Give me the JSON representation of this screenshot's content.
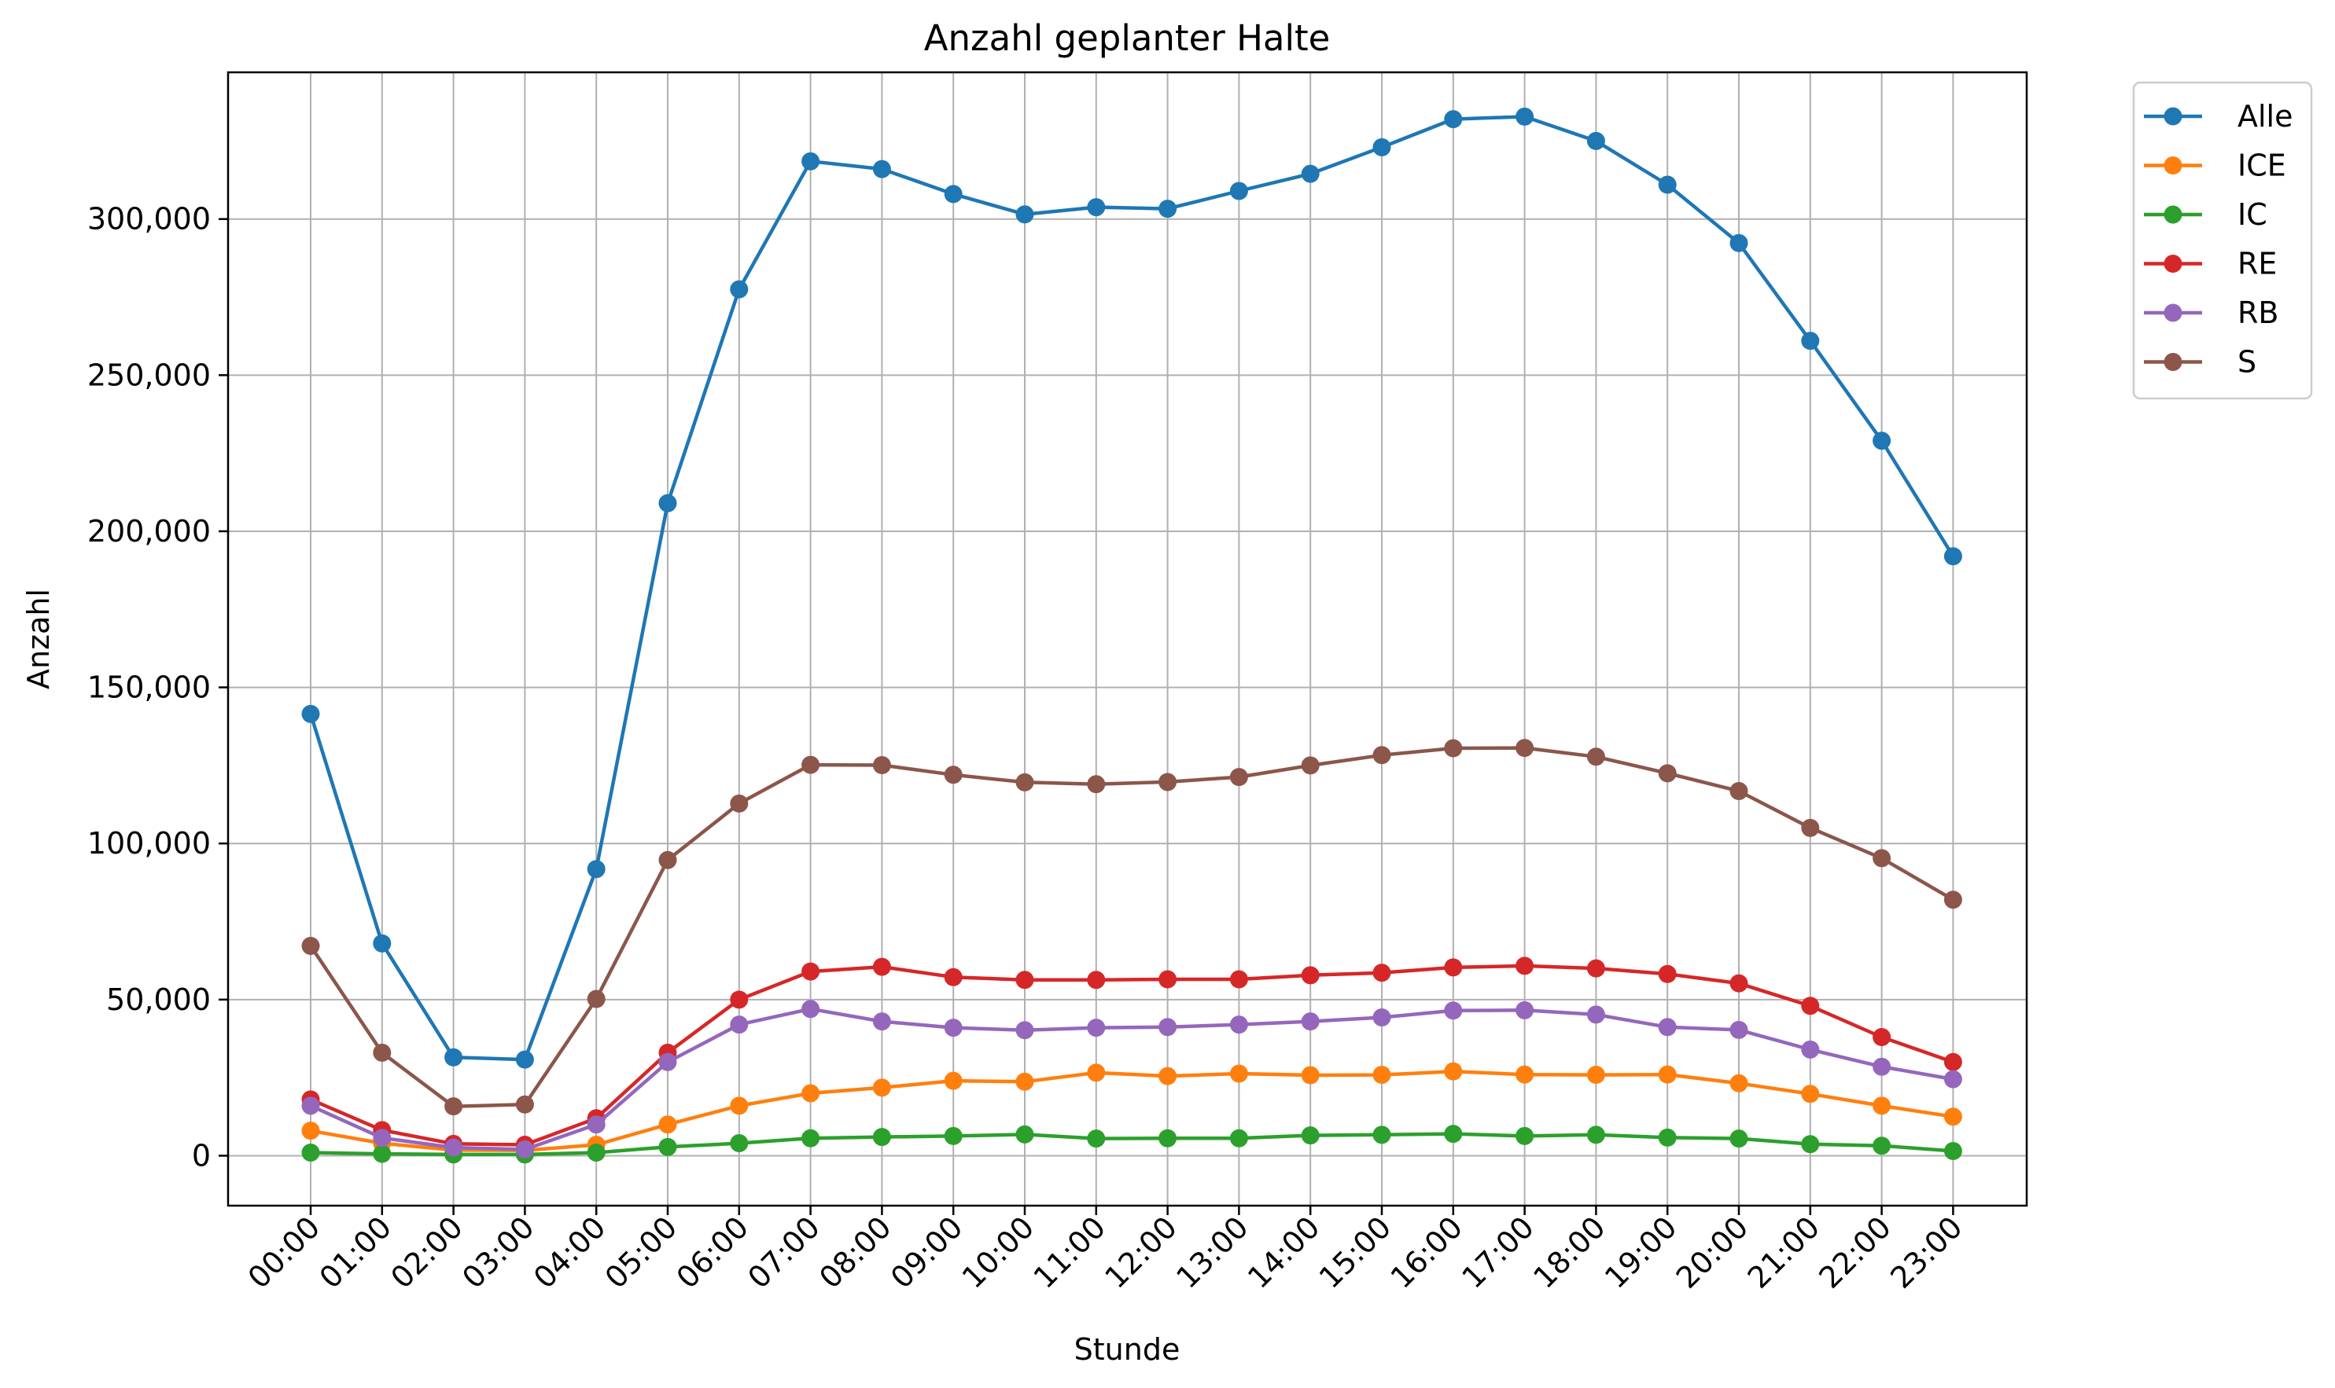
{
  "chart_data": {
    "type": "line",
    "title": "Anzahl geplanter Halte",
    "xlabel": "Stunde",
    "ylabel": "Anzahl",
    "categories": [
      "00:00",
      "01:00",
      "02:00",
      "03:00",
      "04:00",
      "05:00",
      "06:00",
      "07:00",
      "08:00",
      "09:00",
      "10:00",
      "11:00",
      "12:00",
      "13:00",
      "14:00",
      "15:00",
      "16:00",
      "17:00",
      "18:00",
      "19:00",
      "20:00",
      "21:00",
      "22:00",
      "23:00"
    ],
    "ylim": [
      -16000,
      347000
    ],
    "yticks": [
      0,
      50000,
      100000,
      150000,
      200000,
      250000,
      300000
    ],
    "ytick_labels": [
      "0",
      "50,000",
      "100,000",
      "150,000",
      "200,000",
      "250,000",
      "300,000"
    ],
    "grid": true,
    "legend_position": "outside-top-right",
    "series": [
      {
        "name": "Alle",
        "color": "#1f77b4",
        "values": [
          141500,
          68000,
          31500,
          30800,
          91800,
          209000,
          277500,
          318500,
          316000,
          308000,
          301500,
          303800,
          303300,
          309000,
          314500,
          323000,
          332000,
          332800,
          325000,
          311000,
          292300,
          261000,
          229000,
          192000
        ]
      },
      {
        "name": "ICE",
        "color": "#ff7f0e",
        "values": [
          8000,
          4000,
          1800,
          1700,
          3500,
          10000,
          16000,
          20000,
          21800,
          24000,
          23700,
          26600,
          25500,
          26300,
          25800,
          25900,
          27000,
          26000,
          25900,
          26000,
          23200,
          19800,
          16000,
          12500
        ]
      },
      {
        "name": "IC",
        "color": "#2ca02c",
        "values": [
          1000,
          600,
          400,
          400,
          1000,
          2800,
          4000,
          5600,
          6000,
          6300,
          6800,
          5500,
          5600,
          5600,
          6500,
          6700,
          7000,
          6300,
          6700,
          5800,
          5500,
          3700,
          3200,
          1500
        ]
      },
      {
        "name": "RE",
        "color": "#d62728",
        "values": [
          18000,
          8200,
          3800,
          3500,
          12000,
          33000,
          50000,
          59000,
          60500,
          57200,
          56300,
          56300,
          56500,
          56500,
          57800,
          58600,
          60300,
          60800,
          60000,
          58200,
          55200,
          48000,
          38000,
          30000
        ]
      },
      {
        "name": "RB",
        "color": "#9467bd",
        "values": [
          16000,
          5700,
          2600,
          2000,
          10000,
          30000,
          42000,
          47000,
          43000,
          41000,
          40200,
          41000,
          41200,
          42000,
          43000,
          44300,
          46500,
          46600,
          45200,
          41200,
          40300,
          34000,
          28500,
          24500
        ]
      },
      {
        "name": "S",
        "color": "#8c564b",
        "values": [
          67200,
          33000,
          15800,
          16400,
          50200,
          94700,
          112800,
          125200,
          125100,
          122000,
          119600,
          119000,
          119700,
          121300,
          125000,
          128300,
          130500,
          130600,
          127800,
          122500,
          116800,
          105000,
          95300,
          82000
        ]
      }
    ]
  }
}
